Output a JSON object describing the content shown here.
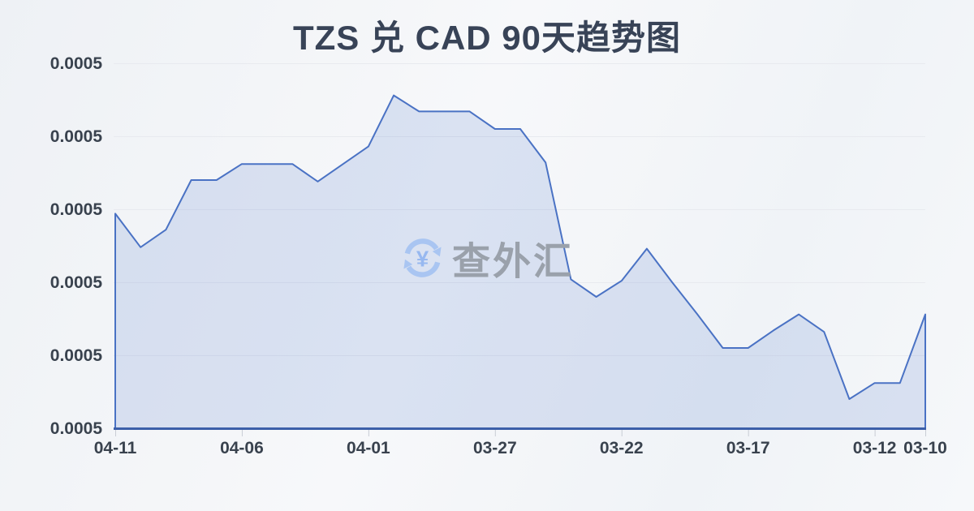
{
  "title": "TZS 兑 CAD 90天趋势图",
  "watermark": {
    "icon": "currency-exchange-circular-arrows-icon",
    "icon_symbol": "¥",
    "text": "查外汇",
    "icon_color": "#a9c5f2",
    "text_color": "#9aa1ab"
  },
  "chart_data": {
    "type": "area",
    "title": "TZS 兑 CAD 90天趋势图",
    "x_order": "newest-date-on-left",
    "x": [
      "04-11",
      "04-10",
      "04-09",
      "04-08",
      "04-07",
      "04-06",
      "04-05",
      "04-04",
      "04-03",
      "04-02",
      "04-01",
      "03-31",
      "03-30",
      "03-29",
      "03-28",
      "03-27",
      "03-26",
      "03-25",
      "03-24",
      "03-23",
      "03-22",
      "03-21",
      "03-20",
      "03-19",
      "03-18",
      "03-17",
      "03-16",
      "03-15",
      "03-14",
      "03-13",
      "03-12",
      "03-11",
      "03-10"
    ],
    "values": [
      0.0005147,
      0.0005124,
      0.0005136,
      0.000517,
      0.000517,
      0.0005181,
      0.0005181,
      0.0005181,
      0.0005169,
      0.0005181,
      0.0005193,
      0.0005228,
      0.0005217,
      0.0005217,
      0.0005217,
      0.0005205,
      0.0005205,
      0.0005182,
      0.0005102,
      0.000509,
      0.0005101,
      0.0005123,
      0.00051,
      0.0005078,
      0.0005055,
      0.0005055,
      0.0005067,
      0.0005078,
      0.0005066,
      0.000502,
      0.0005031,
      0.0005031,
      0.0005078
    ],
    "x_tick_labels": [
      "04-11",
      "04-06",
      "04-01",
      "03-27",
      "03-22",
      "03-17",
      "03-12",
      "03-10"
    ],
    "x_tick_indices": [
      0,
      5,
      10,
      15,
      20,
      25,
      30,
      32
    ],
    "y_tick_labels": [
      "0.0005",
      "0.0005",
      "0.0005",
      "0.0005",
      "0.0005",
      "0.0005"
    ],
    "ylim": [
      0.0005,
      0.000525
    ],
    "grid": true,
    "legend": "none",
    "line_color": "#4a72c4",
    "fill_color": "rgba(91,128,207,0.18)",
    "axis_color": "#3c5fa9",
    "grid_color": "#e8eaef",
    "tick_color": "#c9cdd5",
    "label_color": "#39424e"
  }
}
